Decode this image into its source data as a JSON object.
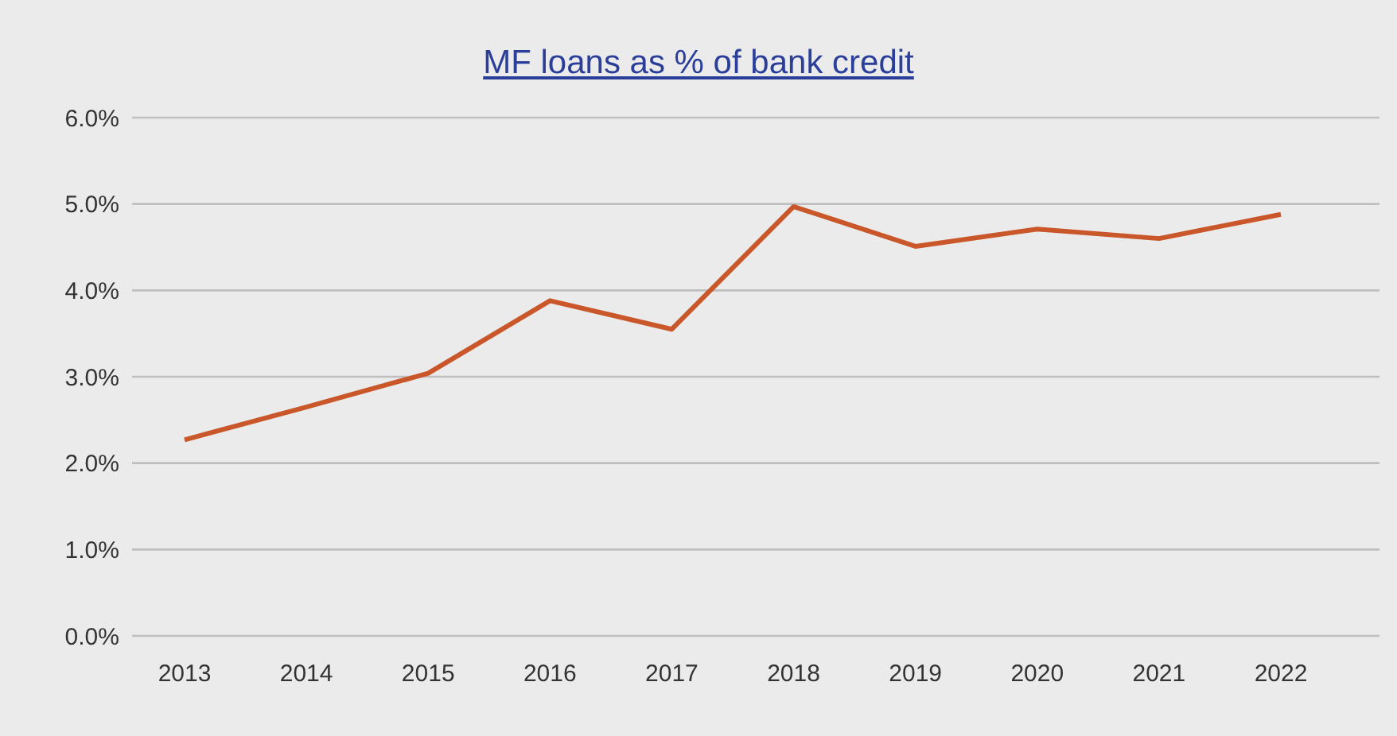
{
  "chart_data": {
    "type": "line",
    "title": "MF loans as % of bank credit",
    "categories": [
      "2013",
      "2014",
      "2015",
      "2016",
      "2017",
      "2018",
      "2019",
      "2020",
      "2021",
      "2022"
    ],
    "series": [
      {
        "color": "#c9572a",
        "values": [
          2.27,
          2.65,
          3.04,
          3.88,
          3.55,
          4.97,
          4.51,
          4.71,
          4.6,
          4.88
        ]
      }
    ],
    "ylim": [
      0,
      6
    ],
    "yticks": [
      {
        "value": 0,
        "label": "0.0%"
      },
      {
        "value": 1,
        "label": "1.0%"
      },
      {
        "value": 2,
        "label": "2.0%"
      },
      {
        "value": 3,
        "label": "3.0%"
      },
      {
        "value": 4,
        "label": "4.0%"
      },
      {
        "value": 5,
        "label": "5.0%"
      },
      {
        "value": 6,
        "label": "6.0%"
      }
    ],
    "grid": "y",
    "legend": false,
    "marker": "none",
    "line_style": "solid"
  }
}
